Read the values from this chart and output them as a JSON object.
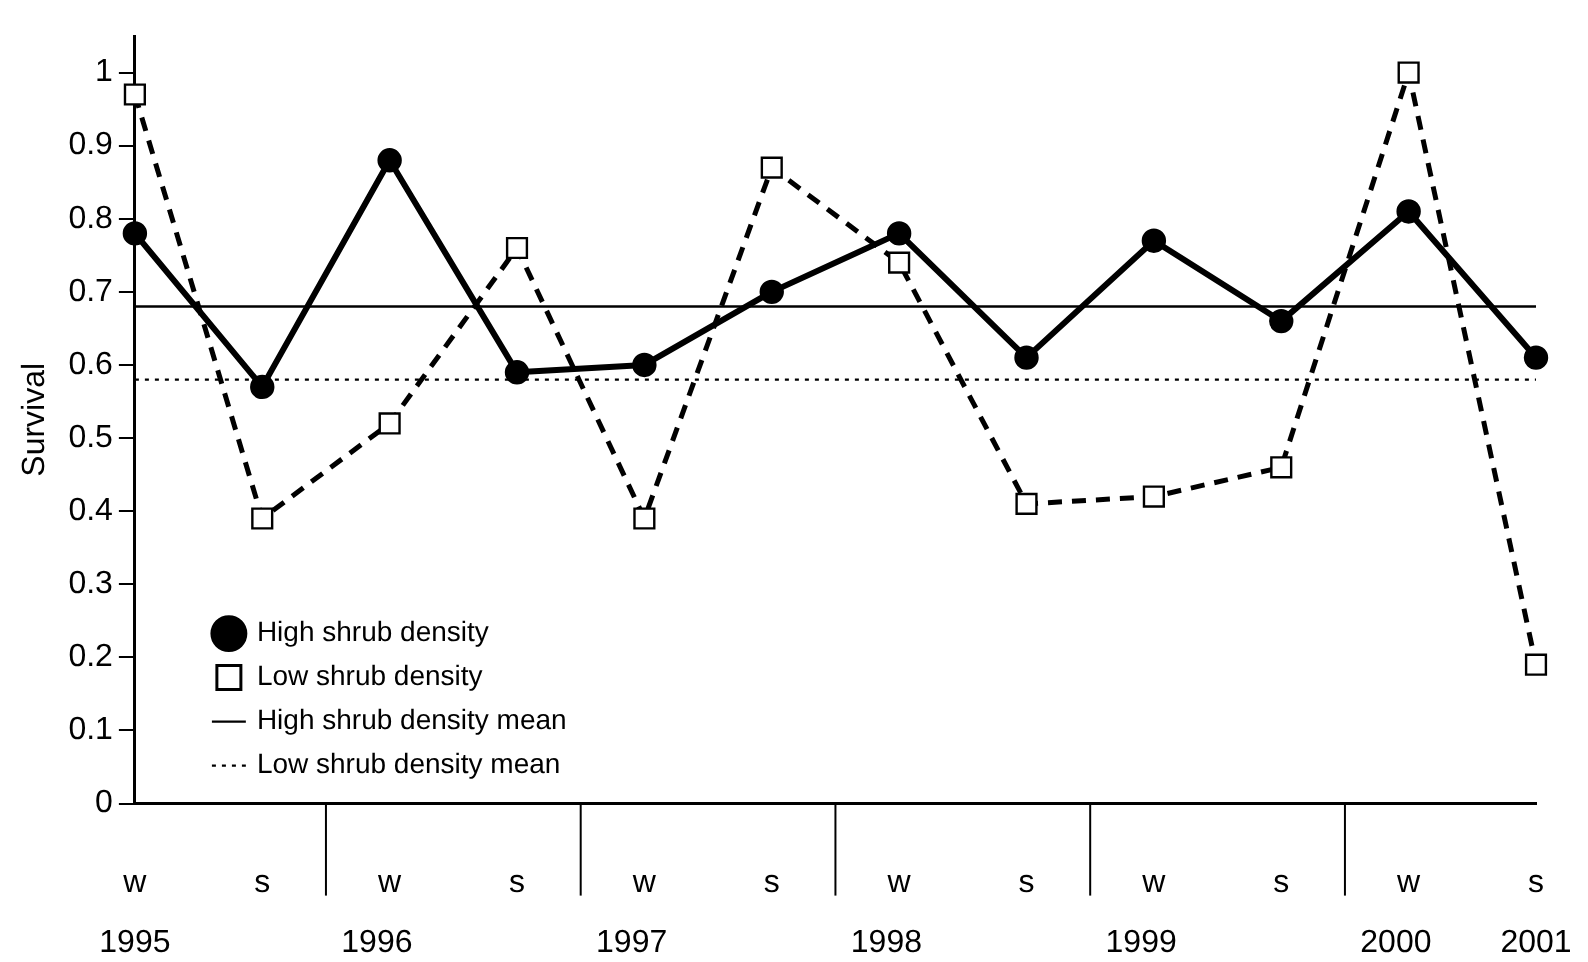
{
  "chart_data": {
    "type": "line",
    "ylabel": "Survival",
    "categories": [
      "w",
      "s",
      "w",
      "s",
      "w",
      "s",
      "w",
      "s",
      "w",
      "s",
      "w",
      "s"
    ],
    "series": [
      {
        "name": "High shrub density",
        "color": "#000000",
        "marker": "circle",
        "line_style": "solid",
        "values": [
          0.78,
          0.57,
          0.88,
          0.59,
          0.6,
          0.7,
          0.78,
          0.61,
          0.77,
          0.66,
          0.81,
          0.61
        ]
      },
      {
        "name": "Low shrub density",
        "color": "#000000",
        "marker": "square",
        "line_style": "dashed",
        "values": [
          0.97,
          0.39,
          0.52,
          0.76,
          0.39,
          0.87,
          0.74,
          0.41,
          0.42,
          0.46,
          1.0,
          0.19
        ]
      }
    ],
    "ref_lines": [
      {
        "axis": "y",
        "value": 0.68,
        "label": "High shrub density mean",
        "color": "#000000",
        "line_style": "solid"
      },
      {
        "axis": "y",
        "value": 0.58,
        "label": "Low shrub density mean",
        "color": "#000000",
        "line_style": "dotted"
      }
    ],
    "annotations": [
      "1995",
      "1996",
      "1997",
      "1998",
      "1999",
      "2000",
      "2001"
    ],
    "ylim": [
      0,
      1.05
    ],
    "yticks": [
      0,
      0.1,
      0.2,
      0.3,
      0.4,
      0.5,
      0.6,
      0.7,
      0.8,
      0.9,
      1
    ],
    "grid": false,
    "legend": "bottom left"
  }
}
